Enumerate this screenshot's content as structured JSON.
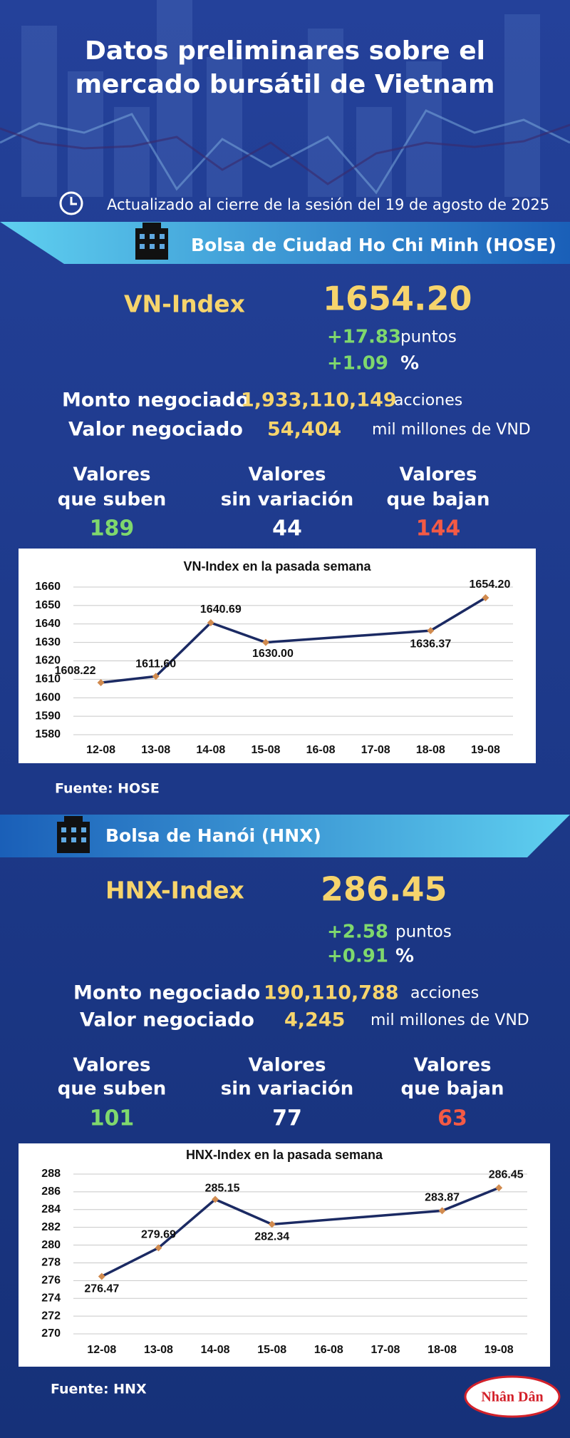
{
  "header": {
    "title_lines": [
      "Datos preliminares sobre el",
      "mercado bursátil de Vietnam"
    ],
    "subtitle": "Actualizado al cierre de la sesión del 19 de agosto de 2025"
  },
  "hose": {
    "name": "Bolsa de Ciudad Ho Chi Minh (HOSE)",
    "index_name": "VN-Index",
    "index_value": "1654.20",
    "change_points": "+17.83",
    "points_unit": "puntos",
    "change_pct": "+1.09",
    "pct_unit": "%",
    "volume_label": "Monto negociado",
    "volume": "1,933,110,149",
    "volume_unit": "acciones",
    "turnover_label": "Valor negociado",
    "turnover": "54,404",
    "turnover_unit": "mil millones de VND",
    "up_label": [
      "Valores",
      "que suben"
    ],
    "up": "189",
    "flat_label": [
      "Valores",
      "sin variación"
    ],
    "flat": "44",
    "down_label": [
      "Valores",
      "que bajan"
    ],
    "down": "144",
    "source": "Fuente: HOSE"
  },
  "hnx": {
    "name": "Bolsa de Hanói (HNX)",
    "index_name": "HNX-Index",
    "index_value": "286.45",
    "change_points": "+2.58",
    "points_unit": "puntos",
    "change_pct": "+0.91",
    "pct_unit": "%",
    "volume_label": "Monto negociado",
    "volume": "190,110,788",
    "volume_unit": "acciones",
    "turnover_label": "Valor negociado",
    "turnover": "4,245",
    "turnover_unit": "mil millones de VND",
    "up_label": [
      "Valores",
      "que suben"
    ],
    "up": "101",
    "flat_label": [
      "Valores",
      "sin variación"
    ],
    "flat": "77",
    "down_label": [
      "Valores",
      "que bajan"
    ],
    "down": "63",
    "source": "Fuente:  HNX"
  },
  "logo": "Nhân Dân",
  "chart_data": [
    {
      "type": "line",
      "title": "VN-Index en la pasada semana",
      "categories": [
        "12-08",
        "13-08",
        "14-08",
        "15-08",
        "16-08",
        "17-08",
        "18-08",
        "19-08"
      ],
      "values": [
        1608.22,
        1611.6,
        1640.69,
        1630.0,
        null,
        null,
        1636.37,
        1654.2
      ],
      "value_labels": [
        "1608.22",
        "1611.60",
        "1640.69",
        "1630.00",
        null,
        null,
        "1636.37",
        "1654.20"
      ],
      "color": "#1b2a63",
      "marker_color": "#d18b4f",
      "span_gaps": true,
      "grid": true,
      "ylim": [
        1580,
        1660
      ],
      "yticks": [
        1580,
        1590,
        1600,
        1610,
        1620,
        1630,
        1640,
        1650,
        1660
      ]
    },
    {
      "type": "line",
      "title": "HNX-Index en la pasada semana",
      "categories": [
        "12-08",
        "13-08",
        "14-08",
        "15-08",
        "16-08",
        "17-08",
        "18-08",
        "19-08"
      ],
      "values": [
        276.47,
        279.69,
        285.15,
        282.34,
        null,
        null,
        283.87,
        286.45
      ],
      "color": "#1b2a63",
      "marker_color": "#d18b4f",
      "span_gaps": true,
      "grid": true,
      "ylim": [
        270,
        288
      ],
      "yticks": [
        270,
        272,
        274,
        276,
        278,
        280,
        282,
        284,
        286,
        288
      ]
    }
  ]
}
